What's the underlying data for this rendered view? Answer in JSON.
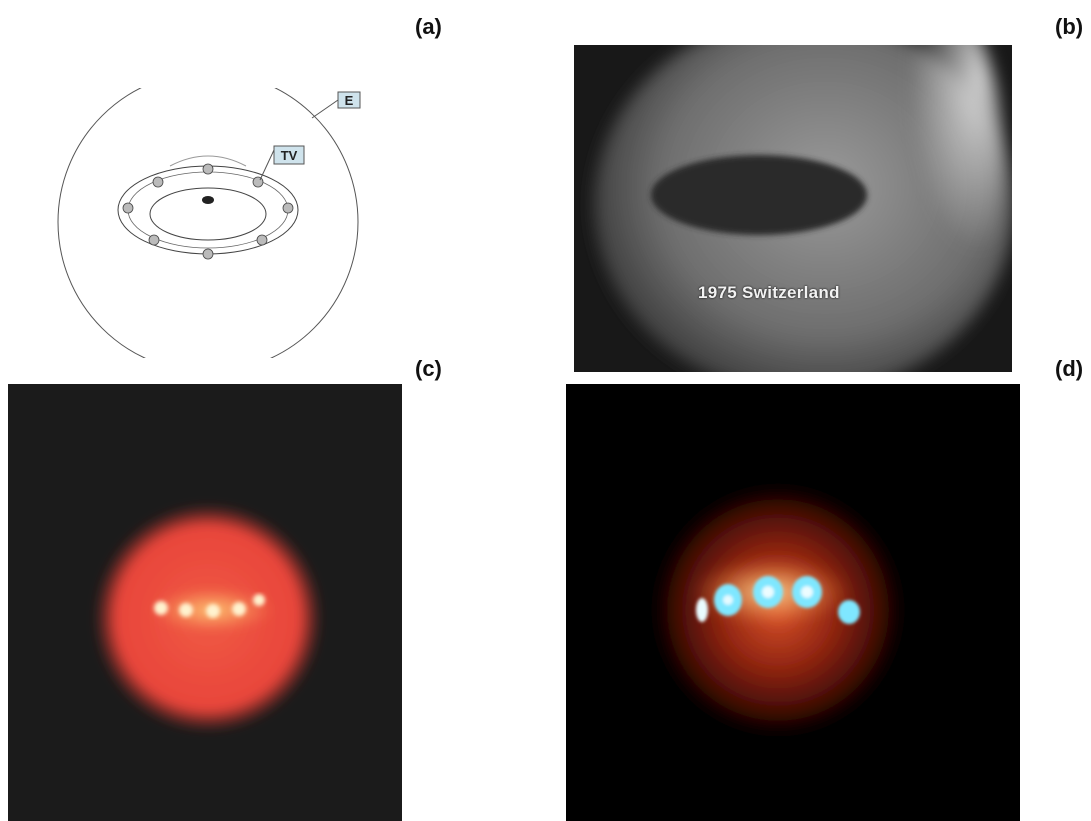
{
  "labels": {
    "a": "(a)",
    "b": "(b)",
    "c": "(c)",
    "d": "(d)"
  },
  "diagram": {
    "callout_e": "E",
    "callout_tv": "TV"
  },
  "photo_b": {
    "caption": "1975 Switzerland"
  },
  "colors": {
    "callout_fill": "#cfe3ec",
    "glow_red": "#e8453a",
    "light_white": "#fff8e0",
    "light_cyan": "#7fe7ff"
  }
}
